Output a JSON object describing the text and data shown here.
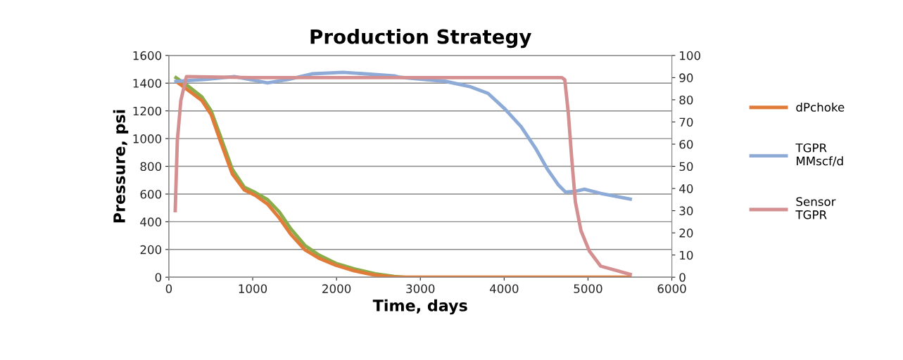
{
  "chart_data": {
    "type": "line",
    "title": "Production Strategy",
    "xlabel": "Time, days",
    "ylabel": "Pressure, psi",
    "xlim": [
      0,
      6000
    ],
    "xticks": [
      0,
      1000,
      2000,
      3000,
      4000,
      5000,
      6000
    ],
    "ylim": [
      0,
      1600
    ],
    "yticks": [
      0,
      200,
      400,
      600,
      800,
      1000,
      1200,
      1400,
      1600
    ],
    "y2lim": [
      0,
      100
    ],
    "y2ticks": [
      0,
      10,
      20,
      30,
      40,
      50,
      60,
      70,
      80,
      90,
      100
    ],
    "grid": "y",
    "legend": "right",
    "line_style": "solid",
    "series": [
      {
        "color": "#8aac4a",
        "x": [
          85,
          227,
          395,
          504,
          613,
          756,
          899,
          1034,
          1177,
          1319,
          1454,
          1622,
          1790,
          1992,
          2210,
          2462,
          2689,
          2800
        ],
        "values": [
          1440,
          1380,
          1300,
          1200,
          1020,
          780,
          650,
          610,
          560,
          470,
          350,
          230,
          160,
          100,
          60,
          25,
          5,
          0
        ]
      },
      {
        "name": "dPchoke",
        "color": "#e07b39",
        "x": [
          101,
          227,
          395,
          504,
          613,
          756,
          899,
          1034,
          1177,
          1319,
          1454,
          1622,
          1790,
          1992,
          2210,
          2462,
          2689,
          3000,
          4000,
          5000,
          5500
        ],
        "values": [
          1406,
          1350,
          1274,
          1173,
          985,
          746,
          630,
          589,
          528,
          426,
          310,
          198,
          137,
          86,
          46,
          15,
          0,
          0,
          0,
          0,
          0
        ]
      },
      {
        "name": "TGPR\nMMscf/d",
        "color": "#8eaad6",
        "axis": "y2",
        "x": [
          84,
          445,
          782,
          1177,
          1429,
          1706,
          2076,
          2689,
          2748,
          3303,
          3588,
          3807,
          4008,
          4202,
          4370,
          4513,
          4647,
          4731,
          4849,
          4958,
          5151,
          5504
        ],
        "values": [
          88.3,
          89.2,
          90.5,
          87.6,
          89.2,
          91.7,
          92.4,
          90.8,
          90.2,
          88.3,
          86.0,
          82.9,
          75.9,
          67.9,
          58.4,
          48.9,
          41.6,
          38.4,
          38.7,
          39.7,
          37.8,
          35.2
        ]
      },
      {
        "name": "Sensor\nTGPR",
        "color": "#d49090",
        "axis": "y2",
        "x": [
          76,
          101,
          143,
          210,
          1000,
          2000,
          3000,
          4000,
          4689,
          4723,
          4765,
          4807,
          4849,
          4916,
          5017,
          5151,
          5504
        ],
        "values": [
          30,
          61.6,
          79.7,
          90.5,
          90,
          90,
          90,
          90,
          90,
          89,
          74,
          53,
          34,
          21,
          11.7,
          5,
          1.3
        ]
      }
    ]
  }
}
